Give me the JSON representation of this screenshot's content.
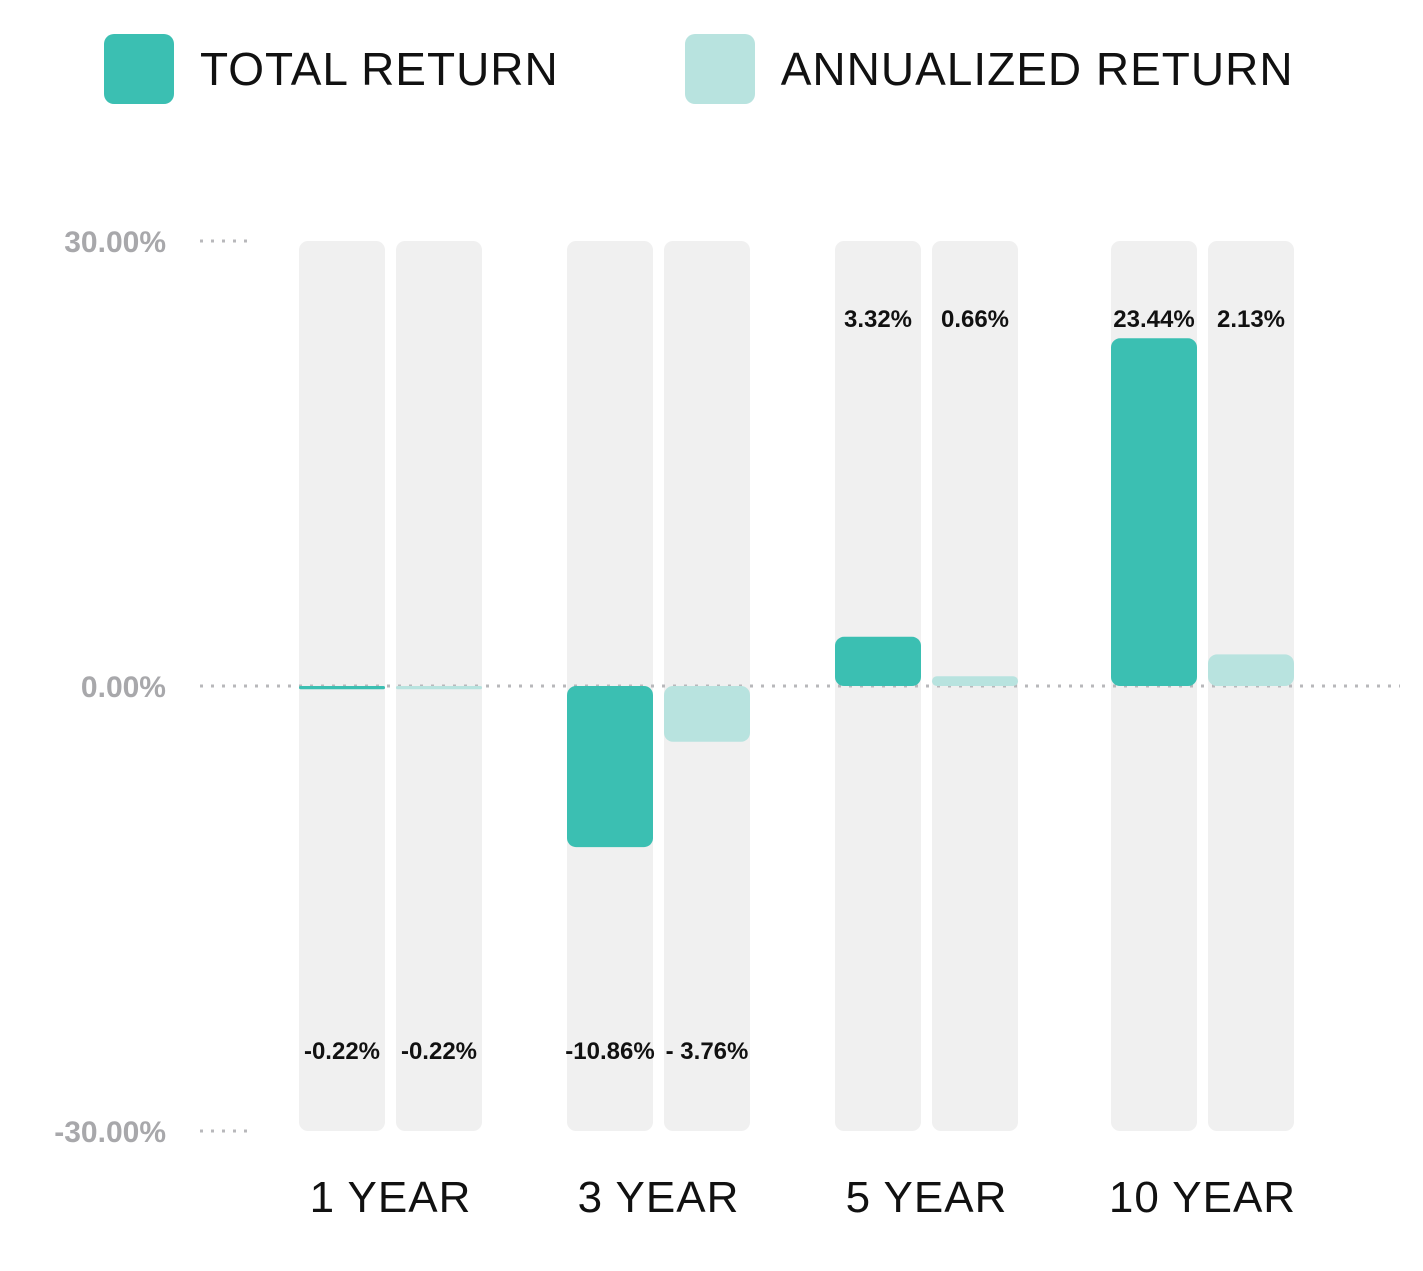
{
  "legend": {
    "total_label": "TOTAL RETURN",
    "annualized_label": "ANNUALIZED RETURN"
  },
  "colors": {
    "total": "#3bbfb2",
    "annualized": "#b8e3df",
    "track": "#f0f0f0",
    "axis_tick": "#a8a8ab",
    "grid": "#b8b8bb"
  },
  "chart_data": {
    "type": "bar",
    "categories": [
      "1 YEAR",
      "3 YEAR",
      "5 YEAR",
      "10 YEAR"
    ],
    "series": [
      {
        "name": "TOTAL RETURN",
        "values": [
          -0.22,
          -10.86,
          3.32,
          23.44
        ],
        "labels": [
          "-0.22%",
          "-10.86%",
          "3.32%",
          "23.44%"
        ]
      },
      {
        "name": "ANNUALIZED RETURN",
        "values": [
          -0.22,
          -3.76,
          0.66,
          2.13
        ],
        "labels": [
          "-0.22%",
          "- 3.76%",
          "0.66%",
          "2.13%"
        ]
      }
    ],
    "ylim": [
      -30,
      30
    ],
    "yticks": [
      30,
      0,
      -30
    ],
    "ytick_labels": [
      "30.00%",
      "0.00%",
      "-30.00%"
    ],
    "xlabel": "",
    "ylabel": "",
    "grid": true,
    "legend_position": "top"
  }
}
